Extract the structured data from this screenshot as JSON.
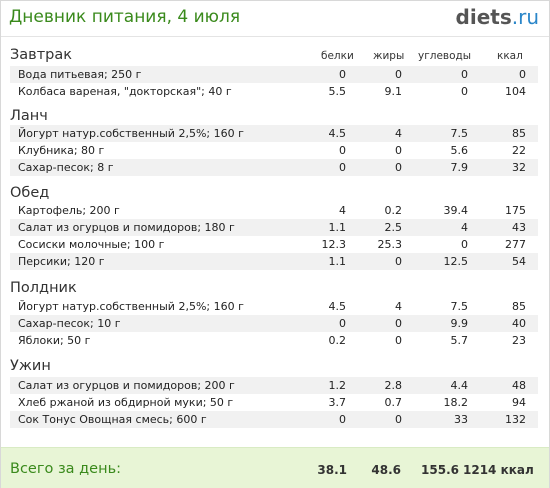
{
  "header": {
    "title": "Дневник питания, 4 июля",
    "logo_main": "diets",
    "logo_suffix": ".ru"
  },
  "columns": {
    "protein": "белки",
    "fat": "жиры",
    "carbs": "углеводы",
    "kcal": "ккал"
  },
  "meals": [
    {
      "name": "Завтрак",
      "items": [
        {
          "name": "Вода питьевая; 250 г",
          "p": "0",
          "f": "0",
          "c": "0",
          "k": "0"
        },
        {
          "name": "Колбаса вареная, \"докторская\"; 40 г",
          "p": "5.5",
          "f": "9.1",
          "c": "0",
          "k": "104"
        }
      ]
    },
    {
      "name": "Ланч",
      "items": [
        {
          "name": "Йогурт натур.собственный 2,5%; 160 г",
          "p": "4.5",
          "f": "4",
          "c": "7.5",
          "k": "85"
        },
        {
          "name": "Клубника; 80 г",
          "p": "0",
          "f": "0",
          "c": "5.6",
          "k": "22"
        },
        {
          "name": "Сахар-песок; 8 г",
          "p": "0",
          "f": "0",
          "c": "7.9",
          "k": "32"
        }
      ]
    },
    {
      "name": "Обед",
      "items": [
        {
          "name": "Картофель; 200 г",
          "p": "4",
          "f": "0.2",
          "c": "39.4",
          "k": "175"
        },
        {
          "name": "Салат из огурцов и помидоров; 180 г",
          "p": "1.1",
          "f": "2.5",
          "c": "4",
          "k": "43"
        },
        {
          "name": "Сосиски молочные; 100 г",
          "p": "12.3",
          "f": "25.3",
          "c": "0",
          "k": "277"
        },
        {
          "name": "Персики; 120 г",
          "p": "1.1",
          "f": "0",
          "c": "12.5",
          "k": "54"
        }
      ]
    },
    {
      "name": "Полдник",
      "items": [
        {
          "name": "Йогурт натур.собственный 2,5%; 160 г",
          "p": "4.5",
          "f": "4",
          "c": "7.5",
          "k": "85"
        },
        {
          "name": "Сахар-песок; 10 г",
          "p": "0",
          "f": "0",
          "c": "9.9",
          "k": "40"
        },
        {
          "name": "Яблоки; 50 г",
          "p": "0.2",
          "f": "0",
          "c": "5.7",
          "k": "23"
        }
      ]
    },
    {
      "name": "Ужин",
      "items": [
        {
          "name": "Салат из огурцов и помидоров; 200 г",
          "p": "1.2",
          "f": "2.8",
          "c": "4.4",
          "k": "48"
        },
        {
          "name": "Хлеб ржаной из обдирной муки; 50 г",
          "p": "3.7",
          "f": "0.7",
          "c": "18.2",
          "k": "94"
        },
        {
          "name": "Сок Тонус Овощная смесь; 600 г",
          "p": "0",
          "f": "0",
          "c": "33",
          "k": "132"
        }
      ]
    }
  ],
  "footer": {
    "label": "Всего за день:",
    "protein": "38.1",
    "fat": "48.6",
    "carbs": "155.6",
    "kcal": "1214 ккал"
  }
}
